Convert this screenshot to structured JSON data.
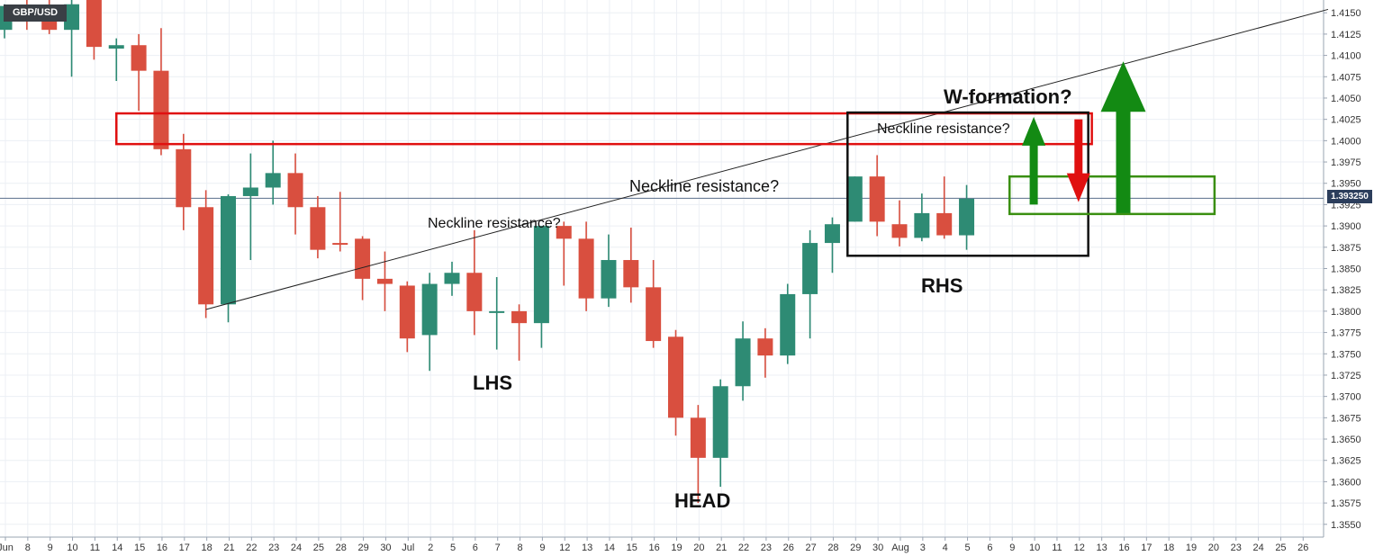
{
  "symbol": "GBP/USD",
  "current_price_label": "1.393250",
  "chart_data": {
    "type": "candlestick",
    "title": "GBP/USD",
    "ylim": [
      1.3535,
      1.4165
    ],
    "y_ticks": [
      "1.4150",
      "1.4125",
      "1.4100",
      "1.4075",
      "1.4050",
      "1.4025",
      "1.4000",
      "1.3975",
      "1.3950",
      "1.3925",
      "1.3900",
      "1.3875",
      "1.3850",
      "1.3825",
      "1.3800",
      "1.3775",
      "1.3750",
      "1.3725",
      "1.3700",
      "1.3675",
      "1.3650",
      "1.3625",
      "1.3600",
      "1.3575",
      "1.3550"
    ],
    "x_ticks": [
      "Jun",
      "8",
      "9",
      "10",
      "11",
      "14",
      "15",
      "16",
      "17",
      "18",
      "21",
      "22",
      "23",
      "24",
      "25",
      "28",
      "29",
      "30",
      "Jul",
      "2",
      "5",
      "6",
      "7",
      "8",
      "9",
      "12",
      "13",
      "14",
      "15",
      "16",
      "19",
      "20",
      "21",
      "22",
      "23",
      "26",
      "27",
      "28",
      "29",
      "30",
      "Aug",
      "3",
      "4",
      "5",
      "6",
      "9",
      "10",
      "11",
      "12",
      "13",
      "16",
      "17",
      "18",
      "19",
      "20",
      "23",
      "24",
      "25",
      "26"
    ],
    "current_price": 1.39325,
    "candles": [
      {
        "date": "Jun 7",
        "open": 1.413,
        "high": 1.416,
        "low": 1.412,
        "close": 1.4158
      },
      {
        "date": "Jun 8",
        "open": 1.4158,
        "high": 1.4165,
        "low": 1.413,
        "close": 1.414
      },
      {
        "date": "Jun 9",
        "open": 1.415,
        "high": 1.4165,
        "low": 1.4125,
        "close": 1.413
      },
      {
        "date": "Jun 10",
        "open": 1.413,
        "high": 1.4165,
        "low": 1.4075,
        "close": 1.416
      },
      {
        "date": "Jun 11",
        "open": 1.4165,
        "high": 1.4165,
        "low": 1.4095,
        "close": 1.411
      },
      {
        "date": "Jun 14",
        "open": 1.4108,
        "high": 1.412,
        "low": 1.407,
        "close": 1.4112
      },
      {
        "date": "Jun 15",
        "open": 1.4112,
        "high": 1.4125,
        "low": 1.4035,
        "close": 1.4082
      },
      {
        "date": "Jun 16",
        "open": 1.4082,
        "high": 1.4132,
        "low": 1.3983,
        "close": 1.399
      },
      {
        "date": "Jun 17",
        "open": 1.399,
        "high": 1.4008,
        "low": 1.3895,
        "close": 1.3922
      },
      {
        "date": "Jun 18",
        "open": 1.3922,
        "high": 1.3942,
        "low": 1.3792,
        "close": 1.3808
      },
      {
        "date": "Jun 21",
        "open": 1.3808,
        "high": 1.3937,
        "low": 1.3787,
        "close": 1.3935
      },
      {
        "date": "Jun 22",
        "open": 1.3935,
        "high": 1.3985,
        "low": 1.386,
        "close": 1.3945
      },
      {
        "date": "Jun 23",
        "open": 1.3945,
        "high": 1.4,
        "low": 1.3925,
        "close": 1.3962
      },
      {
        "date": "Jun 24",
        "open": 1.3962,
        "high": 1.3985,
        "low": 1.389,
        "close": 1.3922
      },
      {
        "date": "Jun 25",
        "open": 1.3922,
        "high": 1.3935,
        "low": 1.3862,
        "close": 1.3872
      },
      {
        "date": "Jun 28",
        "open": 1.388,
        "high": 1.394,
        "low": 1.387,
        "close": 1.3878
      },
      {
        "date": "Jun 29",
        "open": 1.3885,
        "high": 1.3888,
        "low": 1.3813,
        "close": 1.3838
      },
      {
        "date": "Jun 30",
        "open": 1.3838,
        "high": 1.387,
        "low": 1.38,
        "close": 1.3832
      },
      {
        "date": "Jul 1",
        "open": 1.383,
        "high": 1.3835,
        "low": 1.3752,
        "close": 1.3768
      },
      {
        "date": "Jul 2",
        "open": 1.3772,
        "high": 1.3845,
        "low": 1.373,
        "close": 1.3832
      },
      {
        "date": "Jul 5",
        "open": 1.3832,
        "high": 1.3858,
        "low": 1.3818,
        "close": 1.3845
      },
      {
        "date": "Jul 6",
        "open": 1.3845,
        "high": 1.3895,
        "low": 1.3772,
        "close": 1.38
      },
      {
        "date": "Jul 7",
        "open": 1.38,
        "high": 1.384,
        "low": 1.3755,
        "close": 1.38
      },
      {
        "date": "Jul 8",
        "open": 1.38,
        "high": 1.3808,
        "low": 1.3742,
        "close": 1.3786
      },
      {
        "date": "Jul 9",
        "open": 1.3786,
        "high": 1.39,
        "low": 1.3757,
        "close": 1.39
      },
      {
        "date": "Jul 12",
        "open": 1.39,
        "high": 1.3905,
        "low": 1.383,
        "close": 1.3885
      },
      {
        "date": "Jul 13",
        "open": 1.3885,
        "high": 1.3905,
        "low": 1.38,
        "close": 1.3815
      },
      {
        "date": "Jul 14",
        "open": 1.3815,
        "high": 1.389,
        "low": 1.3805,
        "close": 1.386
      },
      {
        "date": "Jul 15",
        "open": 1.386,
        "high": 1.3898,
        "low": 1.381,
        "close": 1.3828
      },
      {
        "date": "Jul 16",
        "open": 1.3828,
        "high": 1.386,
        "low": 1.3757,
        "close": 1.3765
      },
      {
        "date": "Jul 19",
        "open": 1.377,
        "high": 1.3778,
        "low": 1.3654,
        "close": 1.3675
      },
      {
        "date": "Jul 20",
        "open": 1.3675,
        "high": 1.369,
        "low": 1.3575,
        "close": 1.3628
      },
      {
        "date": "Jul 21",
        "open": 1.3628,
        "high": 1.372,
        "low": 1.3594,
        "close": 1.3712
      },
      {
        "date": "Jul 22",
        "open": 1.3712,
        "high": 1.3788,
        "low": 1.3695,
        "close": 1.3768
      },
      {
        "date": "Jul 23",
        "open": 1.3768,
        "high": 1.378,
        "low": 1.3722,
        "close": 1.3748
      },
      {
        "date": "Jul 26",
        "open": 1.3748,
        "high": 1.3832,
        "low": 1.3738,
        "close": 1.382
      },
      {
        "date": "Jul 27",
        "open": 1.382,
        "high": 1.3895,
        "low": 1.3768,
        "close": 1.388
      },
      {
        "date": "Jul 28",
        "open": 1.388,
        "high": 1.391,
        "low": 1.3845,
        "close": 1.3902
      },
      {
        "date": "Jul 29",
        "open": 1.3905,
        "high": 1.3958,
        "low": 1.3905,
        "close": 1.3958
      },
      {
        "date": "Jul 30",
        "open": 1.3958,
        "high": 1.3983,
        "low": 1.3888,
        "close": 1.3905
      },
      {
        "date": "Aug 2",
        "open": 1.3902,
        "high": 1.393,
        "low": 1.3876,
        "close": 1.3886
      },
      {
        "date": "Aug 3",
        "open": 1.3886,
        "high": 1.3938,
        "low": 1.3882,
        "close": 1.3915
      },
      {
        "date": "Aug 4",
        "open": 1.3915,
        "high": 1.3958,
        "low": 1.3885,
        "close": 1.3889
      },
      {
        "date": "Aug 5",
        "open": 1.3889,
        "high": 1.3948,
        "low": 1.3872,
        "close": 1.3932
      }
    ],
    "annotations": [
      "W-formation?",
      "Neckline resistance?",
      "Neckline resistance?",
      "Neckline resistance?",
      "LHS",
      "HEAD",
      "RHS"
    ],
    "colors": {
      "up": "#2e8b74",
      "down": "#d94f3f",
      "resistance_box": "#e01010",
      "support_box": "#3a8f10",
      "green_arrow": "#138a13",
      "red_arrow": "#e01010",
      "price_line": "#5a6e8c"
    }
  }
}
